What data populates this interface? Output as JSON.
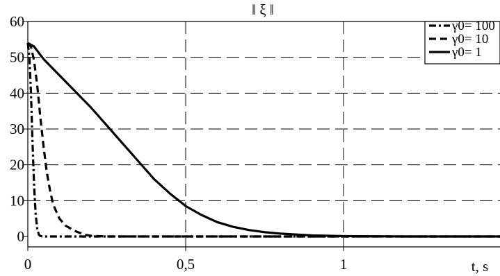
{
  "chart_data": {
    "type": "line",
    "title": "‖ ξ ‖",
    "xlabel": "t, s",
    "ylabel": "",
    "xlim": [
      0,
      1.5
    ],
    "ylim": [
      -3,
      60
    ],
    "x_ticks": [
      0,
      0.5,
      1
    ],
    "x_tick_labels": [
      "0",
      "0,5",
      "1"
    ],
    "y_ticks": [
      0,
      10,
      20,
      30,
      40,
      50,
      60
    ],
    "y_tick_labels": [
      "0",
      "10",
      "20",
      "30",
      "40",
      "50",
      "60"
    ],
    "grid": true,
    "legend_position": "top-right",
    "series": [
      {
        "name": "γ0= 100",
        "style": "dashdot",
        "x": [
          0,
          0.005,
          0.01,
          0.015,
          0.02,
          0.025,
          0.03,
          0.035,
          0.04,
          0.05,
          0.1,
          0.5,
          1,
          1.5
        ],
        "y": [
          54,
          50,
          40,
          26,
          14,
          6,
          2,
          0.5,
          0.1,
          0,
          0,
          0,
          0,
          0
        ]
      },
      {
        "name": "γ0= 10",
        "style": "dashed",
        "x": [
          0,
          0.01,
          0.02,
          0.03,
          0.04,
          0.05,
          0.06,
          0.07,
          0.08,
          0.1,
          0.12,
          0.15,
          0.18,
          0.2,
          0.25,
          0.3,
          0.5,
          1,
          1.5
        ],
        "y": [
          54,
          53,
          49,
          42,
          33,
          25,
          18,
          13,
          9,
          5,
          3,
          1.5,
          0.5,
          0.2,
          0,
          0,
          0,
          0,
          0
        ]
      },
      {
        "name": "γ0= 1",
        "style": "solid",
        "x": [
          0,
          0.02,
          0.05,
          0.1,
          0.15,
          0.2,
          0.25,
          0.3,
          0.35,
          0.4,
          0.45,
          0.5,
          0.55,
          0.6,
          0.65,
          0.7,
          0.75,
          0.8,
          0.9,
          1,
          1.2,
          1.5
        ],
        "y": [
          54,
          53,
          49.5,
          45,
          40.5,
          36,
          31,
          26,
          21,
          16,
          12,
          8.5,
          6,
          4,
          2.7,
          1.8,
          1.2,
          0.8,
          0.3,
          0.1,
          0,
          0
        ]
      }
    ]
  }
}
